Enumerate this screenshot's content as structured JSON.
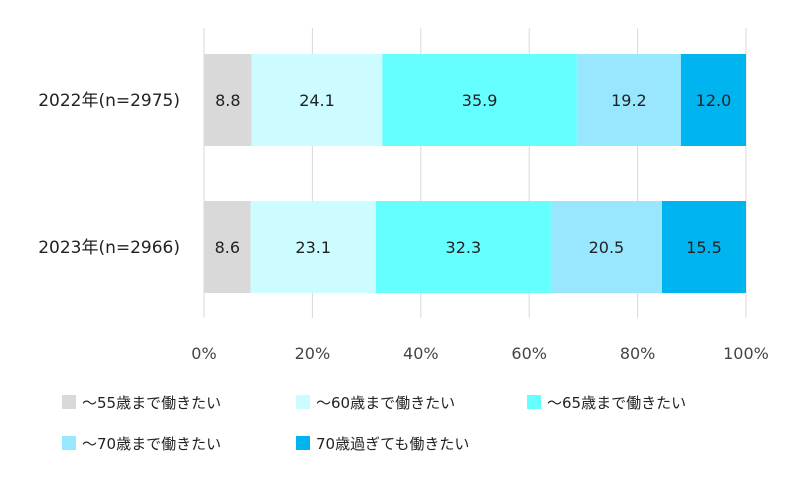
{
  "chart_data": {
    "type": "bar",
    "orientation": "horizontal",
    "stacked": true,
    "categories": [
      "2022年(n=2975)",
      "2023年(n=2966)"
    ],
    "series": [
      {
        "name": "～55歳まで働きたい",
        "values": [
          8.8,
          8.6
        ],
        "color": "#d9d9d9"
      },
      {
        "name": "～60歳まで働きたい",
        "values": [
          24.1,
          23.1
        ],
        "color": "#ccfcff"
      },
      {
        "name": "～65歳まで働きたい",
        "values": [
          35.9,
          32.3
        ],
        "color": "#66ffff"
      },
      {
        "name": "～70歳まで働きたい",
        "values": [
          19.2,
          20.5
        ],
        "color": "#99e6ff"
      },
      {
        "name": "70歳過ぎても働きたい",
        "values": [
          12.0,
          15.5
        ],
        "color": "#00b4f0"
      }
    ],
    "data_labels": [
      [
        "8.8",
        "24.1",
        "35.9",
        "19.2",
        "12.0"
      ],
      [
        "8.6",
        "23.1",
        "32.3",
        "20.5",
        "15.5"
      ]
    ],
    "x_ticks": [
      "0%",
      "20%",
      "40%",
      "60%",
      "80%",
      "100%"
    ],
    "xlim": [
      0,
      100
    ],
    "grid": true,
    "legend_position": "bottom"
  }
}
